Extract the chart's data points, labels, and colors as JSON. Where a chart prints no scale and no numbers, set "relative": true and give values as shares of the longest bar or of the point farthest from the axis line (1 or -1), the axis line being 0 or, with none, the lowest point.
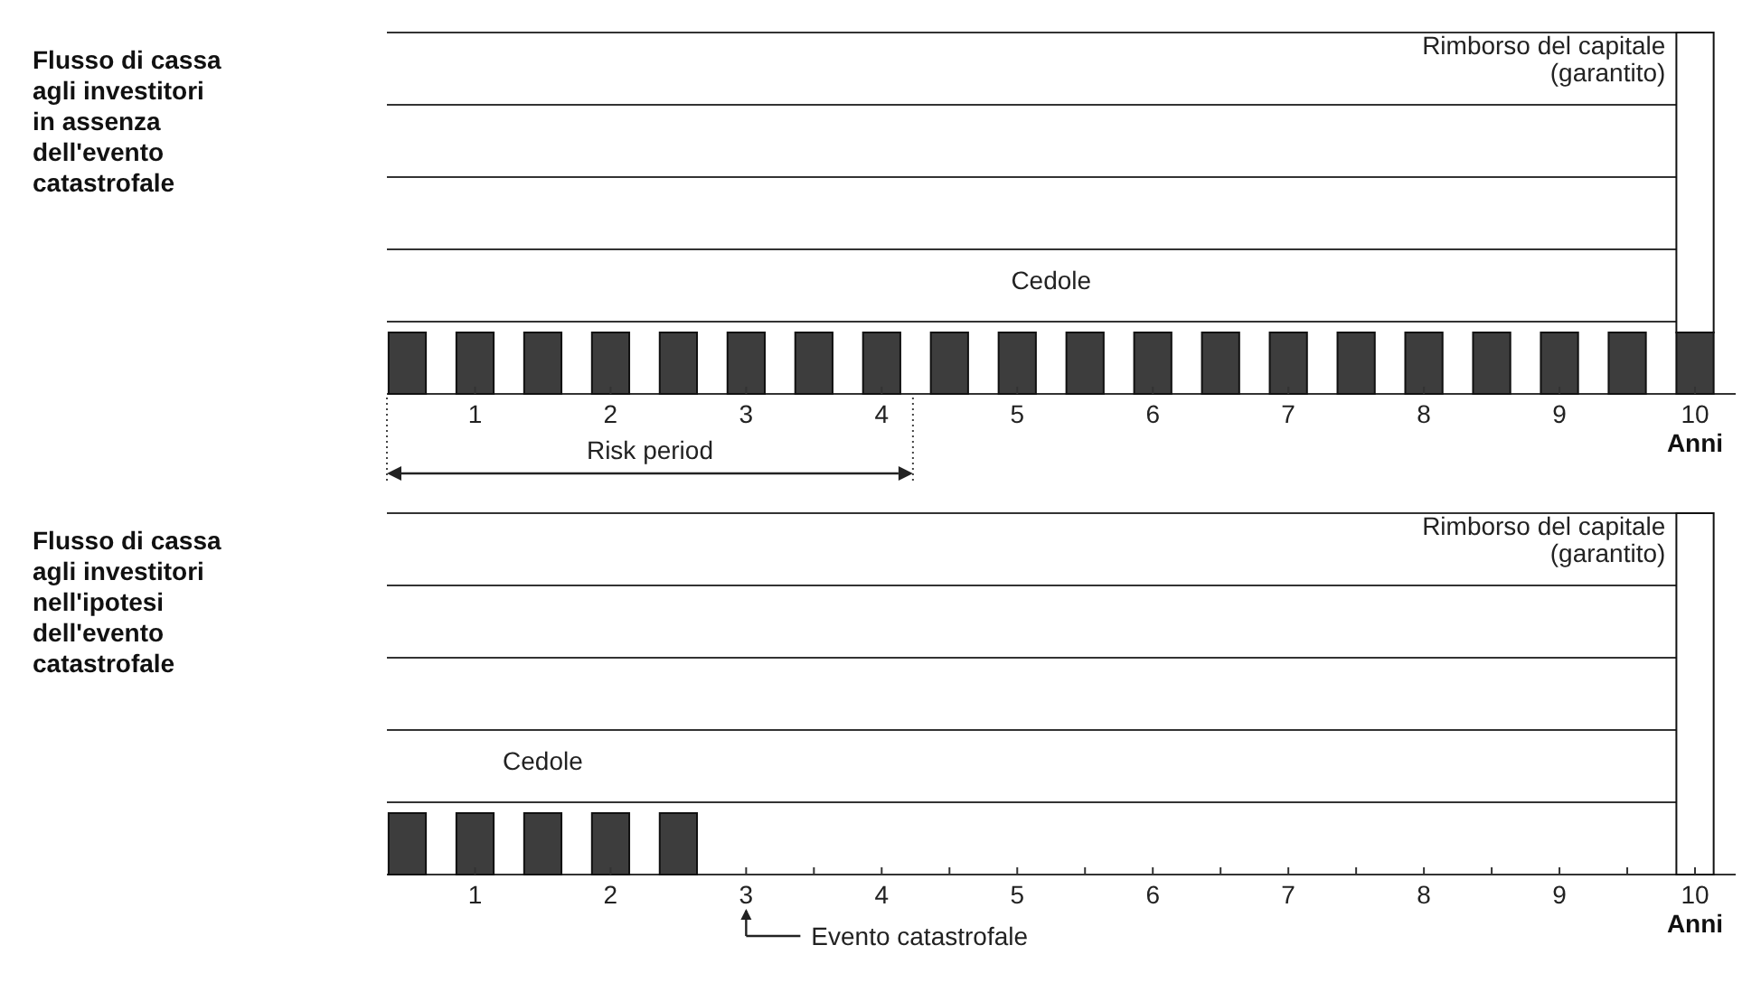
{
  "chart_data": [
    {
      "type": "bar",
      "ylabel": "Flusso di cassa agli investitori in assenza dell'evento catastrofale",
      "xlabel": "Anni",
      "relative": true,
      "stacked": true,
      "grid": true,
      "legend": false,
      "xlim": [
        0.35,
        10.3
      ],
      "xticks": [
        1,
        2,
        3,
        4,
        5,
        6,
        7,
        8,
        9,
        10
      ],
      "x": [
        0.5,
        1,
        1.5,
        2,
        2.5,
        3,
        3.5,
        4,
        4.5,
        5,
        5.5,
        6,
        6.5,
        7,
        7.5,
        8,
        8.5,
        9,
        9.5,
        10
      ],
      "series": [
        {
          "name": "Cedole",
          "color": "#3d3d3d",
          "values": [
            0.17,
            0.17,
            0.17,
            0.17,
            0.17,
            0.17,
            0.17,
            0.17,
            0.17,
            0.17,
            0.17,
            0.17,
            0.17,
            0.17,
            0.17,
            0.17,
            0.17,
            0.17,
            0.17,
            0.17
          ]
        },
        {
          "name": "Rimborso del capitale (garantito)",
          "color": "#ffffff",
          "values": [
            null,
            null,
            null,
            null,
            null,
            null,
            null,
            null,
            null,
            null,
            null,
            null,
            null,
            null,
            null,
            null,
            null,
            null,
            null,
            0.83
          ]
        }
      ],
      "annotations": [
        "Risk period"
      ]
    },
    {
      "type": "bar",
      "ylabel": "Flusso di cassa agli investitori nell'ipotesi dell'evento catastrofale",
      "xlabel": "Anni",
      "relative": true,
      "stacked": true,
      "grid": true,
      "legend": false,
      "xlim": [
        0.35,
        10.3
      ],
      "xticks": [
        1,
        2,
        {
          "value": 3,
          "label": "3"
        },
        {
          "value": 3.5,
          "label": null
        },
        4,
        {
          "value": 4.5,
          "label": null
        },
        5,
        {
          "value": 5.5,
          "label": null
        },
        6,
        {
          "value": 6.5,
          "label": null
        },
        7,
        {
          "value": 7.5,
          "label": null
        },
        8,
        {
          "value": 8.5,
          "label": null
        },
        9,
        {
          "value": 9.5,
          "label": null
        },
        10
      ],
      "x": [
        0.5,
        1,
        1.5,
        2,
        2.5,
        10
      ],
      "series": [
        {
          "name": "Cedole",
          "color": "#3d3d3d",
          "values": [
            0.17,
            0.17,
            0.17,
            0.17,
            0.17,
            null
          ]
        },
        {
          "name": "Rimborso del capitale (garantito)",
          "color": "#ffffff",
          "values": [
            null,
            null,
            null,
            null,
            null,
            1
          ]
        }
      ],
      "annotations": [
        "Evento catastrofale"
      ]
    }
  ]
}
